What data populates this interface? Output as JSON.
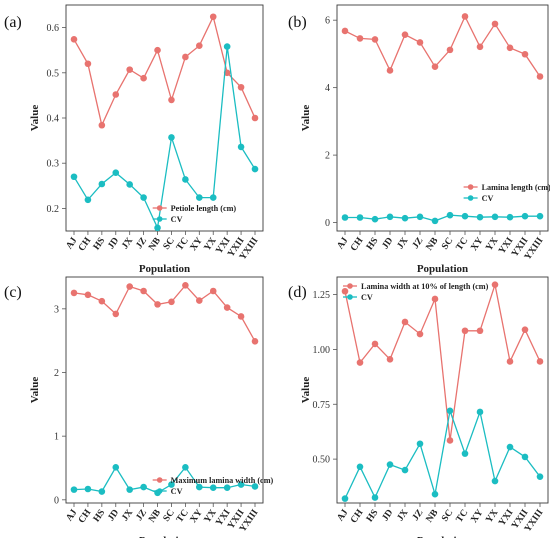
{
  "colors": {
    "series_a": "#E8736F",
    "series_b": "#1BBDC2",
    "frame": "#3a3a3a"
  },
  "chart_data": [
    {
      "panel_label": "(a)",
      "type": "line",
      "xlabel": "Population",
      "ylabel": "Value",
      "categories": [
        "AJ",
        "CH",
        "HS",
        "JD",
        "JX",
        "JZ",
        "NB",
        "SC",
        "TC",
        "XY",
        "YX",
        "YXI",
        "YXII",
        "YXIII"
      ],
      "ylim": [
        0.15,
        0.65
      ],
      "yticks": [
        0.2,
        0.3,
        0.4,
        0.5,
        0.6
      ],
      "ytick_labels": [
        "0.2",
        "0.3",
        "0.4",
        "0.5",
        "0.6"
      ],
      "legend_position": "bottom-right",
      "series": [
        {
          "name": "Petiole length (cm)",
          "color": "#E8736F",
          "values": [
            0.574,
            0.52,
            0.384,
            0.452,
            0.507,
            0.488,
            0.55,
            0.44,
            0.535,
            0.56,
            0.624,
            0.5,
            0.468,
            0.4
          ]
        },
        {
          "name": "CV",
          "color": "#1BBDC2",
          "values": [
            0.27,
            0.219,
            0.254,
            0.279,
            0.253,
            0.224,
            0.157,
            0.357,
            0.264,
            0.224,
            0.224,
            0.558,
            0.336,
            0.287
          ]
        }
      ]
    },
    {
      "panel_label": "(b)",
      "type": "line",
      "xlabel": "Population",
      "ylabel": "Value",
      "categories": [
        "AJ",
        "CH",
        "HS",
        "JD",
        "JX",
        "JZ",
        "NB",
        "SC",
        "TC",
        "XY",
        "YX",
        "YXI",
        "YXII",
        "YXIII"
      ],
      "ylim": [
        -0.25,
        6.45
      ],
      "yticks": [
        0,
        2,
        4,
        6
      ],
      "ytick_labels": [
        "0",
        "2",
        "4",
        "6"
      ],
      "legend_position": "bottom-right",
      "series": [
        {
          "name": "Lamina length (cm)",
          "color": "#E8736F",
          "values": [
            5.68,
            5.46,
            5.43,
            4.51,
            5.57,
            5.34,
            4.62,
            5.12,
            6.11,
            5.21,
            5.89,
            5.18,
            4.99,
            4.33
          ]
        },
        {
          "name": "CV",
          "color": "#1BBDC2",
          "values": [
            0.15,
            0.15,
            0.1,
            0.17,
            0.13,
            0.17,
            0.05,
            0.22,
            0.19,
            0.16,
            0.17,
            0.16,
            0.19,
            0.19
          ]
        }
      ]
    },
    {
      "panel_label": "(c)",
      "type": "line",
      "xlabel": "Population",
      "ylabel": "Value",
      "categories": [
        "AJ",
        "CH",
        "HS",
        "JD",
        "JX",
        "JZ",
        "NB",
        "SC",
        "TC",
        "XY",
        "YX",
        "YXI",
        "YXII",
        "YXIII"
      ],
      "ylim": [
        -0.05,
        3.5
      ],
      "yticks": [
        0,
        1,
        2,
        3
      ],
      "ytick_labels": [
        "0",
        "1",
        "2",
        "3"
      ],
      "legend_position": "bottom-right",
      "series": [
        {
          "name": "Maximum lamina width (cm)",
          "color": "#E8736F",
          "values": [
            3.25,
            3.22,
            3.12,
            2.92,
            3.35,
            3.28,
            3.07,
            3.11,
            3.37,
            3.13,
            3.28,
            3.02,
            2.88,
            2.49
          ]
        },
        {
          "name": "CV",
          "color": "#1BBDC2",
          "values": [
            0.16,
            0.17,
            0.13,
            0.51,
            0.16,
            0.2,
            0.11,
            0.24,
            0.51,
            0.2,
            0.19,
            0.19,
            0.24,
            0.21
          ]
        }
      ]
    },
    {
      "panel_label": "(d)",
      "type": "line",
      "xlabel": "Population",
      "ylabel": "Value",
      "categories": [
        "AJ",
        "CH",
        "HS",
        "JD",
        "JX",
        "JZ",
        "NB",
        "SC",
        "TC",
        "XY",
        "YX",
        "YXI",
        "YXII",
        "YXIII"
      ],
      "ylim": [
        0.3,
        1.33
      ],
      "yticks": [
        0.5,
        0.75,
        1.0,
        1.25
      ],
      "ytick_labels": [
        "0.50",
        "0.75",
        "1.00",
        "1.25"
      ],
      "legend_position": "top-left",
      "series": [
        {
          "name": "Lamina width at 10% of length (cm)",
          "color": "#E8736F",
          "values": [
            1.265,
            0.94,
            1.025,
            0.955,
            1.125,
            1.07,
            1.23,
            0.585,
            1.085,
            1.085,
            1.295,
            0.945,
            1.09,
            0.945
          ]
        },
        {
          "name": "CV",
          "color": "#1BBDC2",
          "values": [
            0.32,
            0.465,
            0.325,
            0.475,
            0.45,
            0.57,
            0.34,
            0.72,
            0.525,
            0.715,
            0.4,
            0.555,
            0.51,
            0.42
          ]
        }
      ]
    }
  ]
}
